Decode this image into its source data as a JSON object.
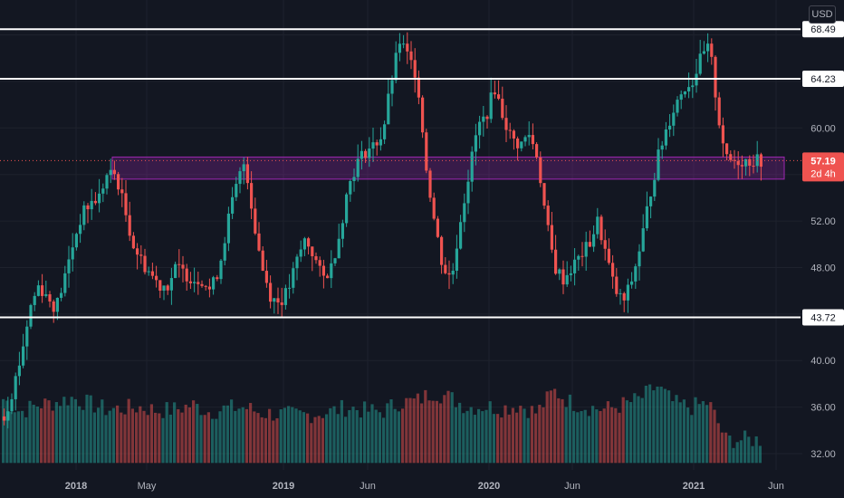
{
  "currency": "USD",
  "chart_data": {
    "type": "candlestick",
    "x_labels": [
      "2018",
      "May",
      "2019",
      "Jun",
      "2020",
      "Jun",
      "2021",
      "Jun"
    ],
    "price_ticks": [
      "40.00",
      "48.00",
      "52.00",
      "60.00",
      "36.00",
      "32.00"
    ],
    "ylim": [
      30.6,
      71.0
    ],
    "grid": true,
    "horizontal_levels": [
      {
        "value": 68.49,
        "label": "68.49"
      },
      {
        "value": 64.23,
        "label": "64.23"
      },
      {
        "value": 43.72,
        "label": "43.72"
      }
    ],
    "last_price": {
      "value": 57.19,
      "label": "57.19",
      "countdown": "2d 4h"
    },
    "zone": {
      "from": 55.6,
      "to": 57.5,
      "start_month": "2018-03"
    },
    "price_path": [
      [
        0,
        35.2
      ],
      [
        0.5,
        37.5
      ],
      [
        1,
        40.5
      ],
      [
        1.5,
        44.5
      ],
      [
        2,
        46.5
      ],
      [
        2.5,
        45.5
      ],
      [
        3,
        44.5
      ],
      [
        3.5,
        47
      ],
      [
        4,
        50
      ],
      [
        4.5,
        52.5
      ],
      [
        5,
        53.5
      ],
      [
        5.5,
        54
      ],
      [
        6,
        56
      ],
      [
        6.5,
        56
      ],
      [
        7,
        53
      ],
      [
        7.5,
        50
      ],
      [
        8,
        48.5
      ],
      [
        8.5,
        47.5
      ],
      [
        9,
        46.5
      ],
      [
        9.5,
        46.5
      ],
      [
        10,
        48
      ],
      [
        10.5,
        47.5
      ],
      [
        11,
        47
      ],
      [
        11.5,
        47
      ],
      [
        12,
        46
      ],
      [
        12.5,
        48
      ],
      [
        13,
        52
      ],
      [
        13.5,
        55
      ],
      [
        14,
        57.3
      ],
      [
        14.5,
        52
      ],
      [
        15,
        48
      ],
      [
        15.5,
        45.5
      ],
      [
        16,
        45
      ],
      [
        16.5,
        46
      ],
      [
        17,
        48.5
      ],
      [
        17.5,
        50.5
      ],
      [
        18,
        49
      ],
      [
        18.5,
        47
      ],
      [
        19,
        48
      ],
      [
        19.5,
        51
      ],
      [
        20,
        55
      ],
      [
        20.5,
        57
      ],
      [
        21,
        58
      ],
      [
        21.5,
        58.5
      ],
      [
        22,
        59.5
      ],
      [
        22.5,
        64
      ],
      [
        23,
        67.5
      ],
      [
        23.5,
        66
      ],
      [
        24,
        64.5
      ],
      [
        24.5,
        57
      ],
      [
        25,
        52
      ],
      [
        25.5,
        48
      ],
      [
        26,
        47
      ],
      [
        26.5,
        52
      ],
      [
        27,
        56
      ],
      [
        27.5,
        60
      ],
      [
        28,
        61
      ],
      [
        28.5,
        63.5
      ],
      [
        29,
        61
      ],
      [
        29.5,
        59
      ],
      [
        30,
        58.5
      ],
      [
        30.5,
        59.5
      ],
      [
        31,
        57.5
      ],
      [
        31.5,
        52
      ],
      [
        32,
        48
      ],
      [
        32.5,
        47
      ],
      [
        33,
        48
      ],
      [
        33.5,
        49
      ],
      [
        34,
        50
      ],
      [
        34.5,
        52
      ],
      [
        35,
        49
      ],
      [
        35.5,
        46
      ],
      [
        36,
        45
      ],
      [
        36.5,
        47
      ],
      [
        37,
        50
      ],
      [
        37.5,
        54
      ],
      [
        38,
        57.5
      ],
      [
        38.5,
        60
      ],
      [
        39,
        62
      ],
      [
        39.5,
        63.5
      ],
      [
        40,
        64
      ],
      [
        40.5,
        66
      ],
      [
        41,
        67
      ],
      [
        41.5,
        61
      ],
      [
        42,
        57.19
      ]
    ],
    "volume_path": [
      [
        0,
        36.7
      ],
      [
        1,
        35.6
      ],
      [
        2,
        36.2
      ],
      [
        3,
        36.4
      ],
      [
        4,
        36.8
      ],
      [
        5,
        36.3
      ],
      [
        6,
        35.8
      ],
      [
        7,
        35.9
      ],
      [
        8,
        36.0
      ],
      [
        9,
        35.7
      ],
      [
        10,
        35.8
      ],
      [
        11,
        36.2
      ],
      [
        12,
        35.6
      ],
      [
        13,
        35.9
      ],
      [
        14,
        36.0
      ],
      [
        15,
        35.5
      ],
      [
        16,
        35.4
      ],
      [
        17,
        35.3
      ],
      [
        18,
        35.4
      ],
      [
        19,
        35.6
      ],
      [
        20,
        36.0
      ],
      [
        21,
        35.7
      ],
      [
        22,
        35.6
      ],
      [
        23,
        36.4
      ],
      [
        24,
        36.5
      ],
      [
        25,
        37.3
      ],
      [
        26,
        36.8
      ],
      [
        27,
        36.0
      ],
      [
        28,
        36.1
      ],
      [
        29,
        35.9
      ],
      [
        30,
        36.2
      ],
      [
        31,
        35.5
      ],
      [
        32,
        37.4
      ],
      [
        33,
        36.4
      ],
      [
        34,
        36.0
      ],
      [
        35,
        35.8
      ],
      [
        36,
        36.2
      ],
      [
        37,
        36.7
      ],
      [
        38,
        37.8
      ],
      [
        39,
        36.3
      ],
      [
        40,
        36.0
      ],
      [
        41,
        36.4
      ],
      [
        42,
        33.2
      ]
    ]
  }
}
